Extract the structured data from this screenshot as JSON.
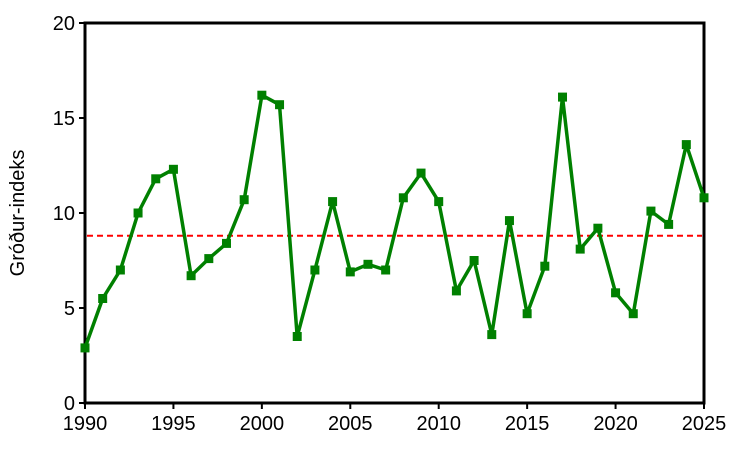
{
  "chart_data": {
    "type": "line",
    "title": "",
    "xlabel": "",
    "ylabel": "Gróður-indeks",
    "xlim": [
      1990,
      2025
    ],
    "ylim": [
      0,
      20
    ],
    "xticks": [
      1990,
      1995,
      2000,
      2005,
      2010,
      2015,
      2020,
      2025
    ],
    "yticks": [
      0,
      5,
      10,
      15,
      20
    ],
    "grid": false,
    "legend": "none",
    "series": [
      {
        "color": "#008000",
        "marker": "square",
        "x": [
          1990,
          1991,
          1992,
          1993,
          1994,
          1995,
          1996,
          1997,
          1998,
          1999,
          2000,
          2001,
          2002,
          2003,
          2004,
          2005,
          2006,
          2007,
          2008,
          2009,
          2010,
          2011,
          2012,
          2013,
          2014,
          2015,
          2016,
          2017,
          2018,
          2019,
          2020,
          2021,
          2022,
          2023,
          2024,
          2025
        ],
        "y": [
          2.9,
          5.5,
          7.0,
          10.0,
          11.8,
          12.3,
          6.7,
          7.6,
          8.4,
          10.7,
          16.2,
          15.7,
          3.5,
          7.0,
          10.6,
          6.9,
          7.3,
          7.0,
          10.8,
          12.1,
          10.6,
          5.9,
          7.5,
          3.6,
          9.6,
          4.7,
          7.2,
          16.1,
          8.1,
          9.2,
          5.8,
          4.7,
          10.1,
          9.4,
          13.6,
          10.8
        ]
      }
    ],
    "reference_line": {
      "y": 8.8,
      "color": "#ff0000",
      "style": "dashed"
    }
  }
}
